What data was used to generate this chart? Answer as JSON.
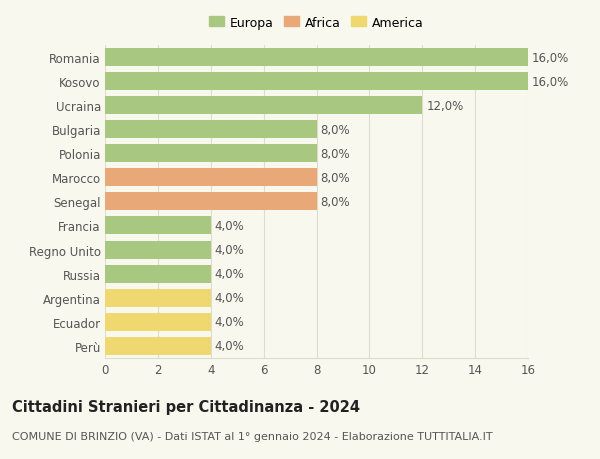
{
  "categories": [
    "Romania",
    "Kosovo",
    "Ucraina",
    "Bulgaria",
    "Polonia",
    "Marocco",
    "Senegal",
    "Francia",
    "Regno Unito",
    "Russia",
    "Argentina",
    "Ecuador",
    "Perù"
  ],
  "values": [
    16.0,
    16.0,
    12.0,
    8.0,
    8.0,
    8.0,
    8.0,
    4.0,
    4.0,
    4.0,
    4.0,
    4.0,
    4.0
  ],
  "continent": [
    "Europa",
    "Europa",
    "Europa",
    "Europa",
    "Europa",
    "Africa",
    "Africa",
    "Europa",
    "Europa",
    "Europa",
    "America",
    "America",
    "America"
  ],
  "colors": {
    "Europa": "#a8c882",
    "Africa": "#e8a878",
    "America": "#f0d870"
  },
  "bar_labels": [
    "16,0%",
    "16,0%",
    "12,0%",
    "8,0%",
    "8,0%",
    "8,0%",
    "8,0%",
    "4,0%",
    "4,0%",
    "4,0%",
    "4,0%",
    "4,0%",
    "4,0%"
  ],
  "xlim": [
    0,
    16
  ],
  "xticks": [
    0,
    2,
    4,
    6,
    8,
    10,
    12,
    14,
    16
  ],
  "title": "Cittadini Stranieri per Cittadinanza - 2024",
  "subtitle": "COMUNE DI BRINZIO (VA) - Dati ISTAT al 1° gennaio 2024 - Elaborazione TUTTITALIA.IT",
  "legend_entries": [
    "Europa",
    "Africa",
    "America"
  ],
  "background_color": "#f8f8ee",
  "grid_color": "#ddddcc",
  "bar_height": 0.75,
  "label_fontsize": 8.5,
  "title_fontsize": 10.5,
  "subtitle_fontsize": 8.0
}
